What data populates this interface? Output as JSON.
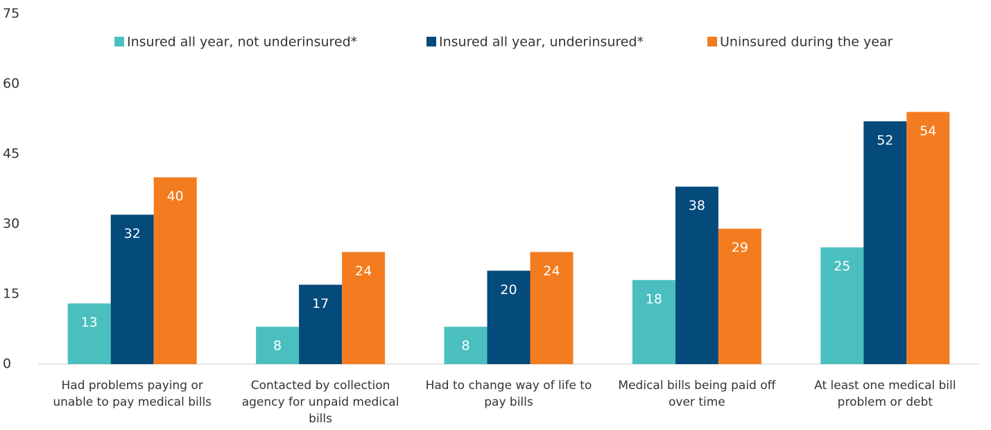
{
  "chart_data": {
    "type": "bar",
    "categories": [
      "Had problems paying or unable to pay medical bills",
      "Contacted by collection agency for unpaid medical bills",
      "Had to change way of life to pay bills",
      "Medical bills being paid off over time",
      "At least one medical bill problem or debt"
    ],
    "series": [
      {
        "name": "Insured all year, not underinsured*",
        "color": "#4bbfbf",
        "values": [
          13,
          8,
          8,
          18,
          25
        ]
      },
      {
        "name": "Insured all year, underinsured*",
        "color": "#044a7b",
        "values": [
          32,
          17,
          20,
          38,
          52
        ]
      },
      {
        "name": "Uninsured during the year",
        "color": "#f47c20",
        "values": [
          40,
          24,
          24,
          29,
          54
        ]
      }
    ],
    "ylim": [
      0,
      75
    ],
    "yticks": [
      0,
      15,
      30,
      45,
      60,
      75
    ],
    "grid": false,
    "legend": "top"
  }
}
